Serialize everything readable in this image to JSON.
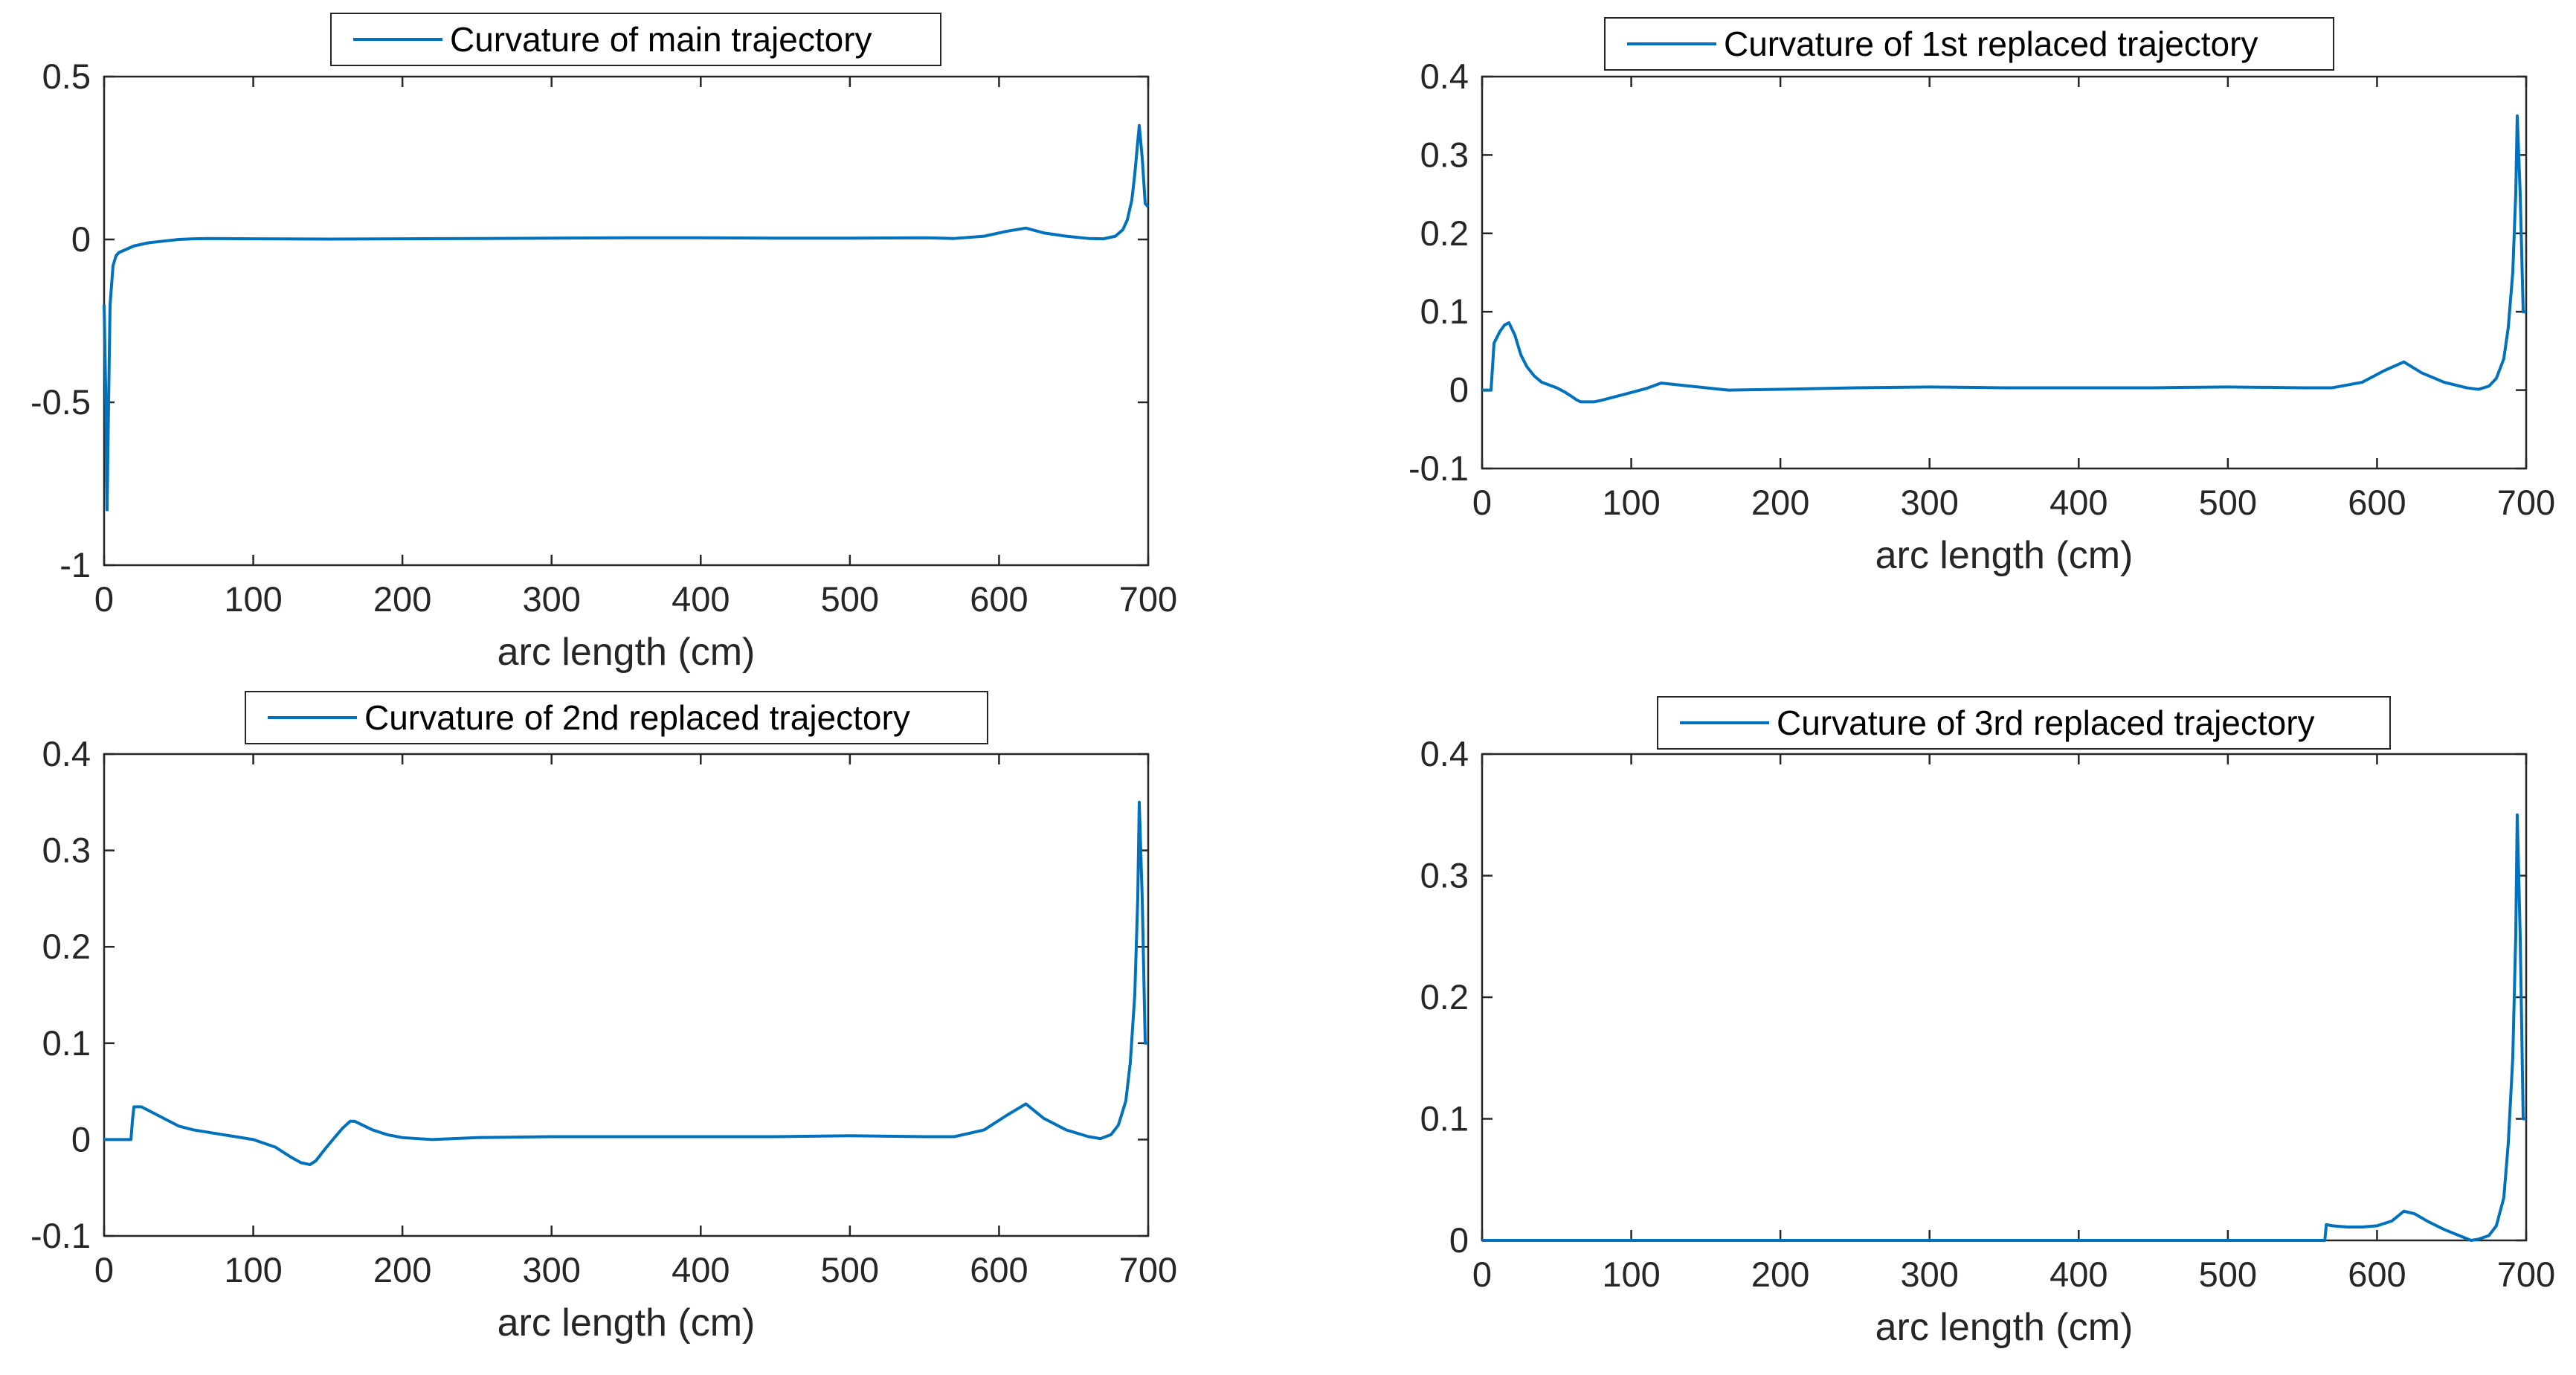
{
  "colors": {
    "series": "#0072BD",
    "axis": "#262626",
    "background": "#ffffff"
  },
  "chart_data": [
    {
      "type": "line",
      "xlabel": "arc length (cm)",
      "ylabel": "",
      "xlim": [
        0,
        700
      ],
      "ylim": [
        -1,
        0.5
      ],
      "xticks": [
        0,
        100,
        200,
        300,
        400,
        500,
        600,
        700
      ],
      "yticks": [
        -1,
        -0.5,
        0,
        0.5
      ],
      "ytick_labels": [
        "-1",
        "-0.5",
        "0",
        "0.5"
      ],
      "grid": false,
      "legend_position": "top-center",
      "series": [
        {
          "name": "Curvature of main trajectory",
          "x": [
            0,
            1,
            2,
            3,
            4,
            6,
            8,
            10,
            15,
            20,
            30,
            40,
            50,
            60,
            70,
            100,
            150,
            200,
            250,
            300,
            350,
            400,
            450,
            500,
            550,
            570,
            590,
            605,
            618,
            630,
            645,
            660,
            670,
            678,
            683,
            686,
            689,
            691,
            693,
            694,
            696,
            698,
            700
          ],
          "y": [
            -0.2,
            -0.45,
            -0.83,
            -0.5,
            -0.2,
            -0.08,
            -0.05,
            -0.04,
            -0.03,
            -0.02,
            -0.01,
            -0.005,
            0.0,
            0.002,
            0.003,
            0.002,
            0.001,
            0.002,
            0.003,
            0.004,
            0.005,
            0.005,
            0.004,
            0.004,
            0.005,
            0.003,
            0.01,
            0.025,
            0.035,
            0.02,
            0.01,
            0.003,
            0.002,
            0.01,
            0.03,
            0.06,
            0.12,
            0.2,
            0.3,
            0.35,
            0.25,
            0.11,
            0.1
          ]
        }
      ]
    },
    {
      "type": "line",
      "xlabel": "arc length (cm)",
      "ylabel": "",
      "xlim": [
        0,
        700
      ],
      "ylim": [
        -0.1,
        0.4
      ],
      "xticks": [
        0,
        100,
        200,
        300,
        400,
        500,
        600,
        700
      ],
      "yticks": [
        -0.1,
        0,
        0.1,
        0.2,
        0.3,
        0.4
      ],
      "ytick_labels": [
        "-0.1",
        "0",
        "0.1",
        "0.2",
        "0.3",
        "0.4"
      ],
      "grid": false,
      "legend_position": "top-center",
      "series": [
        {
          "name": "Curvature of 1st replaced trajectory",
          "x": [
            0,
            3,
            6,
            7,
            8,
            12,
            15,
            18,
            22,
            26,
            30,
            35,
            40,
            50,
            55,
            60,
            63,
            66,
            70,
            75,
            80,
            90,
            100,
            110,
            120,
            140,
            165,
            200,
            250,
            300,
            350,
            400,
            450,
            500,
            550,
            570,
            590,
            605,
            618,
            630,
            645,
            660,
            668,
            675,
            680,
            685,
            688,
            691,
            693,
            694,
            696,
            698,
            700
          ],
          "y": [
            0.0,
            0.0,
            0.0,
            0.03,
            0.06,
            0.075,
            0.083,
            0.086,
            0.07,
            0.045,
            0.03,
            0.018,
            0.01,
            0.003,
            -0.002,
            -0.008,
            -0.012,
            -0.015,
            -0.015,
            -0.015,
            -0.013,
            -0.008,
            -0.003,
            0.002,
            0.009,
            0.005,
            0.0,
            0.001,
            0.003,
            0.004,
            0.003,
            0.003,
            0.003,
            0.004,
            0.003,
            0.003,
            0.01,
            0.025,
            0.036,
            0.022,
            0.01,
            0.003,
            0.001,
            0.005,
            0.015,
            0.04,
            0.08,
            0.15,
            0.25,
            0.35,
            0.25,
            0.1,
            0.1
          ]
        }
      ]
    },
    {
      "type": "line",
      "xlabel": "arc length (cm)",
      "ylabel": "",
      "xlim": [
        0,
        700
      ],
      "ylim": [
        -0.1,
        0.4
      ],
      "xticks": [
        0,
        100,
        200,
        300,
        400,
        500,
        600,
        700
      ],
      "yticks": [
        -0.1,
        0,
        0.1,
        0.2,
        0.3,
        0.4
      ],
      "ytick_labels": [
        "-0.1",
        "0",
        "0.1",
        "0.2",
        "0.3",
        "0.4"
      ],
      "grid": false,
      "legend_position": "top-center",
      "series": [
        {
          "name": "Curvature of 2nd replaced trajectory",
          "x": [
            0,
            10,
            18,
            19,
            20,
            25,
            30,
            40,
            50,
            60,
            80,
            100,
            115,
            125,
            132,
            138,
            142,
            148,
            155,
            160,
            165,
            168,
            172,
            180,
            190,
            200,
            220,
            250,
            300,
            350,
            400,
            450,
            500,
            550,
            570,
            590,
            605,
            618,
            630,
            645,
            660,
            668,
            675,
            680,
            685,
            688,
            691,
            693,
            694,
            696,
            698,
            700
          ],
          "y": [
            0.0,
            0.0,
            0.0,
            0.02,
            0.034,
            0.034,
            0.03,
            0.022,
            0.014,
            0.01,
            0.005,
            0.0,
            -0.008,
            -0.018,
            -0.024,
            -0.026,
            -0.022,
            -0.01,
            0.003,
            0.012,
            0.019,
            0.019,
            0.016,
            0.01,
            0.005,
            0.002,
            0.0,
            0.002,
            0.003,
            0.003,
            0.003,
            0.003,
            0.004,
            0.003,
            0.003,
            0.01,
            0.025,
            0.037,
            0.022,
            0.01,
            0.003,
            0.001,
            0.005,
            0.015,
            0.04,
            0.08,
            0.15,
            0.25,
            0.35,
            0.25,
            0.1,
            0.1
          ]
        }
      ]
    },
    {
      "type": "line",
      "xlabel": "arc length (cm)",
      "ylabel": "",
      "xlim": [
        0,
        700
      ],
      "ylim": [
        0,
        0.4
      ],
      "xticks": [
        0,
        100,
        200,
        300,
        400,
        500,
        600,
        700
      ],
      "yticks": [
        0,
        0.1,
        0.2,
        0.3,
        0.4
      ],
      "ytick_labels": [
        "0",
        "0.1",
        "0.2",
        "0.3",
        "0.4"
      ],
      "grid": false,
      "legend_position": "top-center",
      "series": [
        {
          "name": "Curvature of 3rd replaced trajectory",
          "x": [
            0,
            100,
            200,
            300,
            400,
            500,
            560,
            565,
            566,
            570,
            580,
            590,
            600,
            610,
            618,
            625,
            635,
            645,
            655,
            663,
            668,
            675,
            680,
            685,
            688,
            691,
            693,
            694,
            696,
            698,
            700
          ],
          "y": [
            0.0,
            0.0,
            0.0,
            0.0,
            0.0,
            0.0,
            0.0,
            0.0,
            0.013,
            0.012,
            0.011,
            0.011,
            0.012,
            0.016,
            0.024,
            0.022,
            0.015,
            0.009,
            0.004,
            0.0,
            0.001,
            0.004,
            0.012,
            0.035,
            0.08,
            0.15,
            0.25,
            0.35,
            0.25,
            0.1,
            0.1
          ]
        }
      ]
    }
  ]
}
